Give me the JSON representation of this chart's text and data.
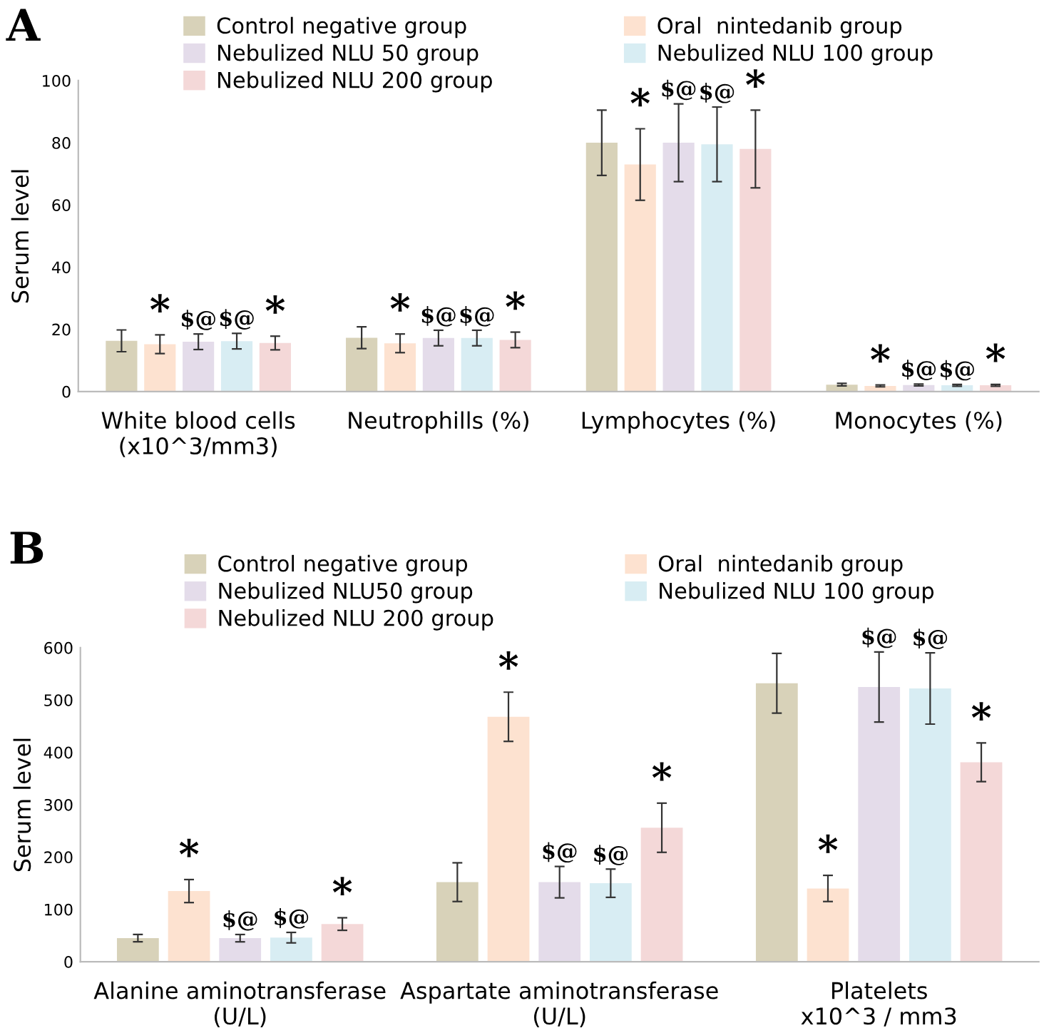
{
  "chart_data": [
    {
      "type": "bar",
      "title": "A",
      "ylabel": "Serum level",
      "categories": [
        "White blood cells\n(x10^3/mm3)",
        "Neutrophills (%)",
        "Lymphocytes (%)",
        "Monocytes (%)"
      ],
      "ylim": [
        0,
        100
      ],
      "yticks": [
        0,
        20,
        40,
        60,
        80,
        100
      ],
      "grid": false,
      "legend": "top",
      "series": [
        {
          "name": "Control negative group",
          "color": "#d8d2b9",
          "values": [
            16.3,
            17.3,
            80,
            2.2
          ],
          "errors": [
            3.5,
            3.5,
            10.5,
            0.4
          ]
        },
        {
          "name": "Oral  nintedanib group",
          "color": "#fde2d0",
          "values": [
            15.2,
            15.5,
            73,
            1.8
          ],
          "errors": [
            3,
            3,
            11.5,
            0.3
          ],
          "value_labels": [
            "*",
            "*",
            "*",
            "*"
          ]
        },
        {
          "name": "Nebulized NLU 50 group",
          "color": "#e4dcea",
          "values": [
            16,
            17.2,
            80,
            2.1
          ],
          "errors": [
            2.5,
            2.5,
            12.5,
            0.3
          ],
          "value_labels": [
            "$@",
            "$@",
            "$@",
            "$@"
          ]
        },
        {
          "name": "Nebulized NLU 100 group",
          "color": "#d8edf3",
          "values": [
            16.2,
            17.2,
            79.5,
            2.0
          ],
          "errors": [
            2.5,
            2.5,
            12,
            0.3
          ],
          "value_labels": [
            "$@",
            "$@",
            "$@",
            "$@"
          ]
        },
        {
          "name": "Nebulized NLU 200 group",
          "color": "#f4d8d8",
          "values": [
            15.6,
            16.6,
            78,
            2.0
          ],
          "errors": [
            2.2,
            2.5,
            12.5,
            0.3
          ],
          "value_labels": [
            "*",
            "*",
            "*",
            "*"
          ]
        }
      ]
    },
    {
      "type": "bar",
      "title": "B",
      "ylabel": "Serum level",
      "categories": [
        "Alanine aminotransferase\n(U/L)",
        "Aspartate aminotransferase\n(U/L)",
        "Platelets\nx10^3 / mm3"
      ],
      "ylim": [
        0,
        600
      ],
      "yticks": [
        0,
        100,
        200,
        300,
        400,
        500,
        600
      ],
      "grid": false,
      "legend": "top",
      "series": [
        {
          "name": "Control negative group",
          "color": "#d8d2b9",
          "values": [
            45,
            152,
            532
          ],
          "errors": [
            7,
            37,
            57
          ]
        },
        {
          "name": "Oral  nintedanib group",
          "color": "#fde2d0",
          "values": [
            135,
            468,
            140
          ],
          "errors": [
            22,
            47,
            25
          ],
          "value_labels": [
            "*",
            "*",
            "*"
          ]
        },
        {
          "name": "Nebulized NLU50 group",
          "color": "#e4dcea",
          "values": [
            45,
            152,
            525
          ],
          "errors": [
            7,
            30,
            67
          ],
          "value_labels": [
            "$@",
            "$@",
            "$@"
          ]
        },
        {
          "name": "Nebulized NLU 100 group",
          "color": "#d8edf3",
          "values": [
            46,
            150,
            522
          ],
          "errors": [
            10,
            27,
            68
          ],
          "value_labels": [
            "$@",
            "$@",
            "$@"
          ]
        },
        {
          "name": "Nebulized NLU 200 group",
          "color": "#f4d8d8",
          "values": [
            72,
            256,
            381
          ],
          "errors": [
            12,
            47,
            37
          ],
          "value_labels": [
            "*",
            "*",
            "*"
          ]
        }
      ]
    }
  ]
}
